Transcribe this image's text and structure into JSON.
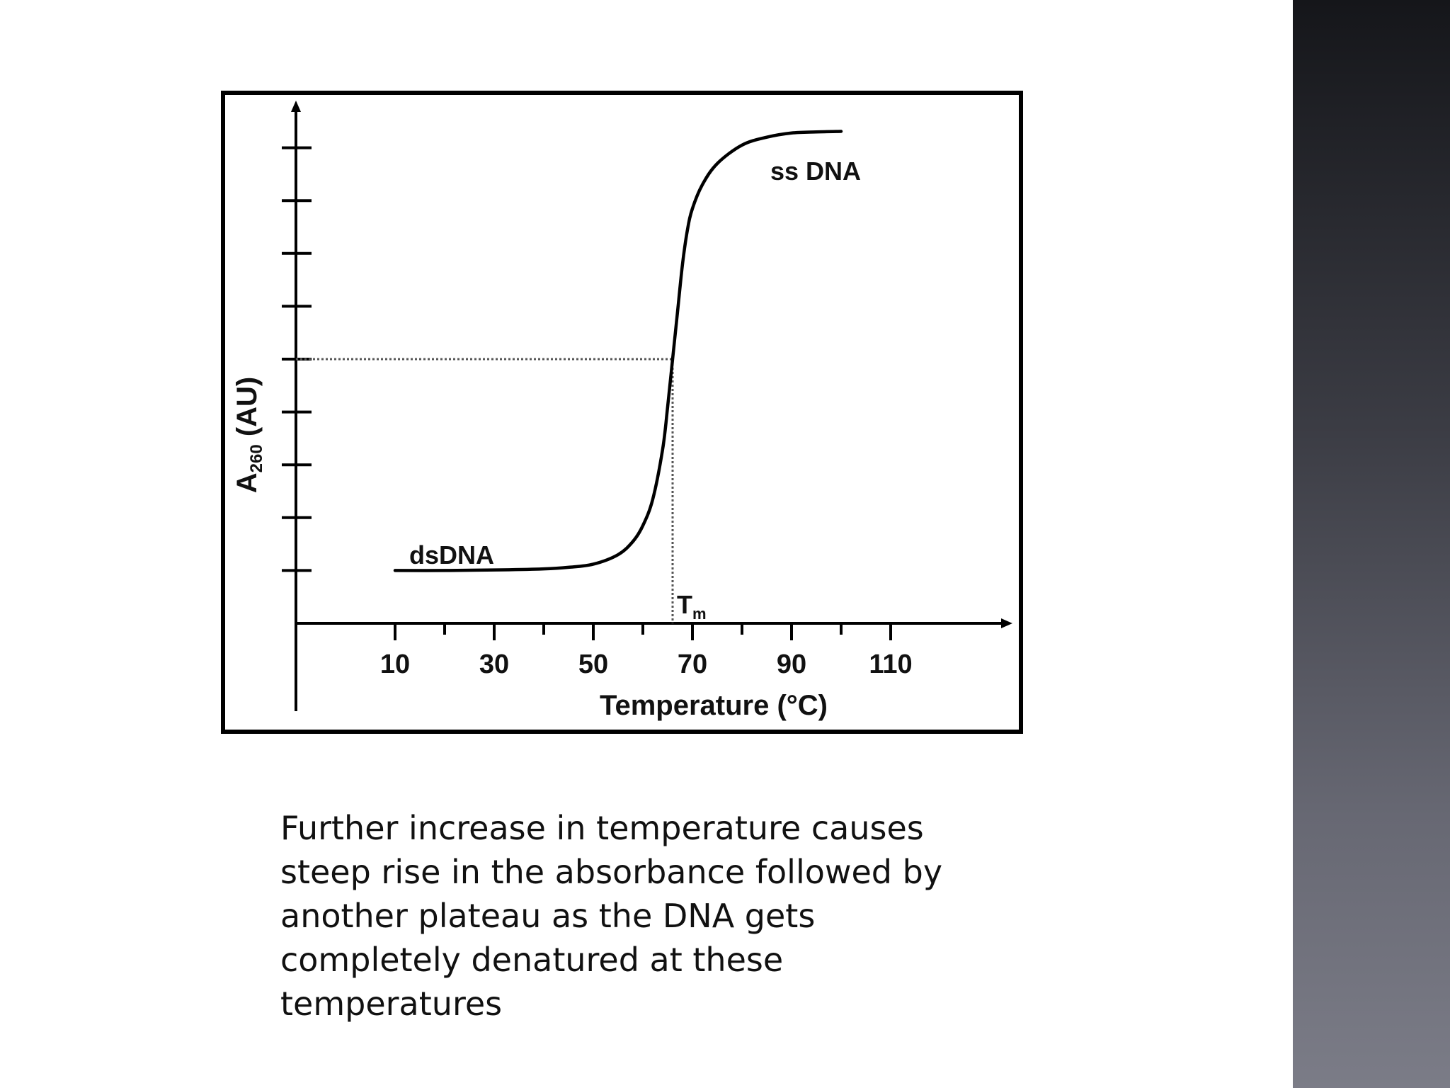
{
  "chart_data": {
    "type": "line",
    "xlabel": "Temperature (°C)",
    "ylabel_main": "A",
    "ylabel_sub": "260",
    "ylabel_unit": " (AU)",
    "x_ticks": [
      10,
      30,
      50,
      70,
      90,
      110
    ],
    "xlim": [
      -10,
      130
    ],
    "ylim": [
      0,
      10
    ],
    "y_ticks_unlabeled": [
      1,
      2,
      3,
      4,
      5,
      6,
      7,
      8,
      9
    ],
    "grid": false,
    "series": [
      {
        "x": [
          10,
          20,
          30,
          40,
          45,
          50,
          55,
          58,
          60,
          62,
          64,
          65,
          66,
          67,
          68,
          69,
          70,
          72,
          75,
          80,
          85,
          90,
          95,
          100
        ],
        "y": [
          1.0,
          1.0,
          1.01,
          1.03,
          1.06,
          1.12,
          1.3,
          1.55,
          1.85,
          2.35,
          3.3,
          4.1,
          5.0,
          5.9,
          6.8,
          7.45,
          7.85,
          8.3,
          8.7,
          9.05,
          9.2,
          9.28,
          9.3,
          9.31
        ],
        "color": "#000000"
      }
    ],
    "annotations": {
      "dsdna": "dsDNA",
      "ssdna": "ss DNA",
      "tm_main": "T",
      "tm_sub": "m",
      "tm_x": 66,
      "tm_y": 5.0
    }
  },
  "caption": {
    "lines": [
      "Further increase in temperature causes",
      "steep rise in the absorbance followed by",
      "another plateau as the DNA gets",
      "completely denatured at these",
      "temperatures"
    ]
  }
}
